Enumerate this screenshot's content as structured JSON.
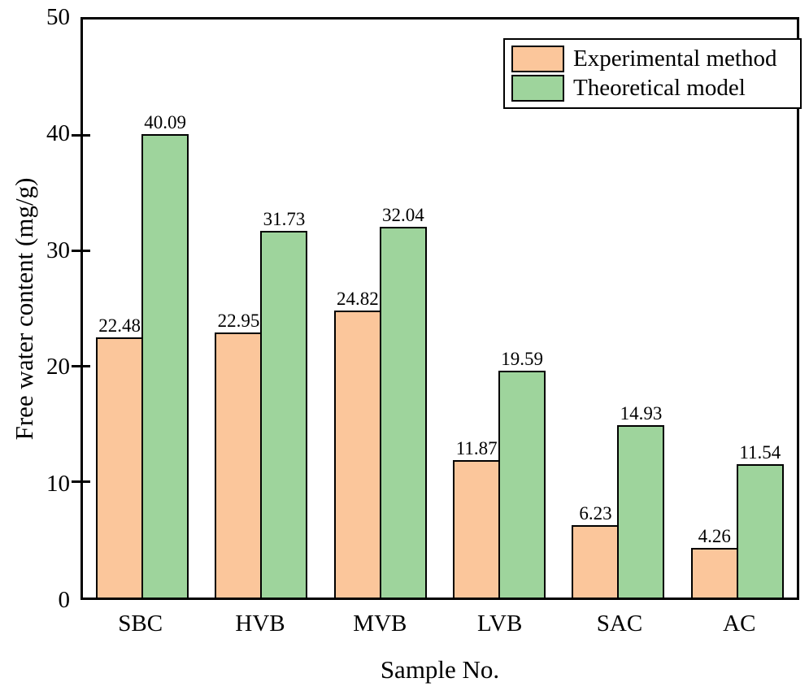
{
  "chart_data": {
    "type": "bar",
    "title": "",
    "xlabel": "Sample No.",
    "ylabel": "Free water content (mg/g)",
    "categories": [
      "SBC",
      "HVB",
      "MVB",
      "LVB",
      "SAC",
      "AC"
    ],
    "series": [
      {
        "name": "Experimental method",
        "color": "#FBC69B",
        "values": [
          22.48,
          22.95,
          24.82,
          11.87,
          6.23,
          4.26
        ]
      },
      {
        "name": "Theoretical model",
        "color": "#9ED49C",
        "values": [
          40.09,
          31.73,
          32.04,
          19.59,
          14.93,
          11.54
        ]
      }
    ],
    "ylim": [
      0,
      50
    ],
    "yticks": [
      0,
      10,
      20,
      30,
      40,
      50
    ],
    "grid": false,
    "value_labels_shown": true,
    "legend_position": "top-right",
    "bar_edge_color": "#000000",
    "axis_color": "#000000",
    "background_color": "#FFFFFF"
  }
}
